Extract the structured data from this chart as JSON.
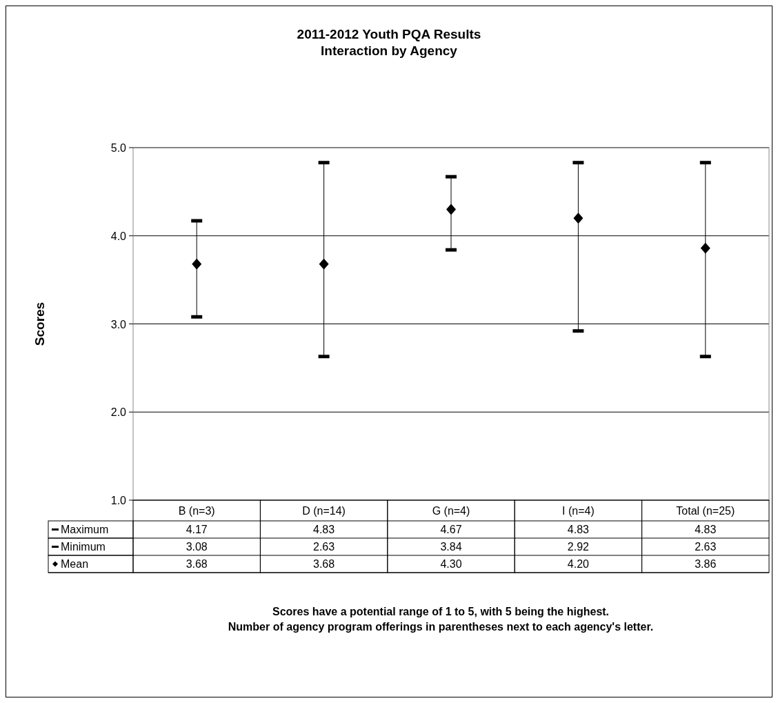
{
  "chart_data": {
    "type": "scatter",
    "title": "2011-2012 Youth PQA Results",
    "subtitle": "Interaction by Agency",
    "ylabel": "Scores",
    "categories": [
      "B (n=3)",
      "D (n=14)",
      "G (n=4)",
      "I  (n=4)",
      "Total (n=25)"
    ],
    "series": [
      {
        "name": "Maximum",
        "color": "#000000",
        "values": [
          4.17,
          4.83,
          4.67,
          4.83,
          4.83
        ],
        "value_labels": [
          "4.17",
          "4.83",
          "4.67",
          "4.83",
          "4.83"
        ]
      },
      {
        "name": "Minimum",
        "color": "#000000",
        "values": [
          3.08,
          2.63,
          3.84,
          2.92,
          2.63
        ],
        "value_labels": [
          "3.08",
          "2.63",
          "3.84",
          "2.92",
          "2.63"
        ]
      },
      {
        "name": "Mean",
        "color": "#000000",
        "values": [
          3.68,
          3.68,
          4.3,
          4.2,
          3.86
        ],
        "value_labels": [
          "3.68",
          "3.68",
          "4.30",
          "4.20",
          "3.86"
        ],
        "marker": "diamond"
      }
    ],
    "ylim": [
      1,
      5
    ],
    "yticks": [
      {
        "value": 1,
        "label": "1.0"
      },
      {
        "value": 2,
        "label": "2.0"
      },
      {
        "value": 3,
        "label": "3.0"
      },
      {
        "value": 4,
        "label": "4.0"
      },
      {
        "value": 5,
        "label": "5.0"
      }
    ],
    "grid": "y",
    "legend": "bottom left",
    "annotations": [
      "Scores have a potential range of 1 to 5, with 5 being the highest.",
      "Number of agency program offerings in parentheses next to each agency's letter."
    ]
  }
}
